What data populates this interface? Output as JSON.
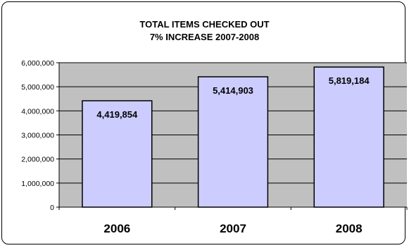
{
  "chart_data": {
    "type": "bar",
    "title_line1": "TOTAL ITEMS CHECKED OUT",
    "title_line2": "7% INCREASE 2007-2008",
    "categories": [
      "2006",
      "2007",
      "2008"
    ],
    "values": [
      4419854,
      5414903,
      5819184
    ],
    "value_labels": [
      "4,419,854",
      "5,414,903",
      "5,819,184"
    ],
    "yticks": [
      0,
      1000000,
      2000000,
      3000000,
      4000000,
      5000000,
      6000000
    ],
    "ytick_labels": [
      "0",
      "1,000,000",
      "2,000,000",
      "3,000,000",
      "4,000,000",
      "5,000,000",
      "6,000,000"
    ],
    "ylim": [
      0,
      6000000
    ],
    "grid": true,
    "colors": {
      "plot_background": "#c0c0c0",
      "bar_fill": "#ccccff",
      "bar_stroke": "#000000",
      "gridline": "#000000"
    }
  }
}
